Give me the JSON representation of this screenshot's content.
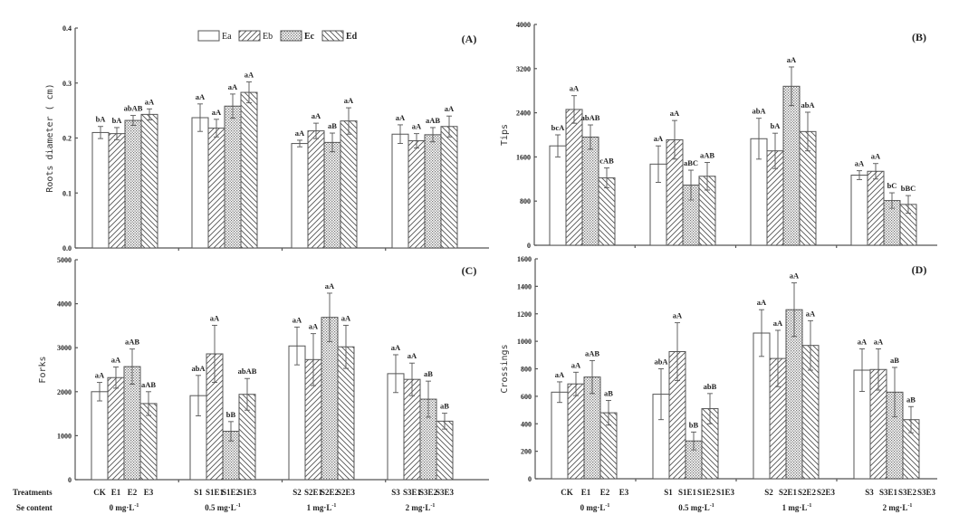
{
  "legend": [
    {
      "name": "Ea",
      "pattern": "empty"
    },
    {
      "name": "Eb",
      "pattern": "diag-right"
    },
    {
      "name": "Ec",
      "pattern": "dots"
    },
    {
      "name": "Ed",
      "pattern": "diag-left"
    }
  ],
  "x_axis": {
    "treatments_label": "Treatments",
    "se_content_label": "Se content",
    "groups": [
      {
        "se": "0 mg·L",
        "treatments": [
          "CK",
          "E1",
          "E2",
          "E3"
        ]
      },
      {
        "se": "0.5 mg·L",
        "treatments": [
          "S1",
          "S1E1",
          "S1E2",
          "S1E3"
        ]
      },
      {
        "se": "1 mg·L",
        "treatments": [
          "S2",
          "S2E1",
          "S2E2",
          "S2E3"
        ]
      },
      {
        "se": "2 mg·L",
        "treatments": [
          "S3",
          "S3E1",
          "S3E2",
          "S3E3"
        ]
      }
    ],
    "unit_superscript": "-1"
  },
  "chart_data": [
    {
      "id": "A",
      "panel_label": "(A)",
      "type": "bar",
      "ylabel": "Roots diameter ( cm)",
      "ylim": [
        0,
        0.4
      ],
      "yticks": [
        "0.0",
        "0.1",
        "0.2",
        "0.3",
        "0.4"
      ],
      "categories": [
        "0 mg·L-1",
        "0.5 mg·L-1",
        "1 mg·L-1",
        "2 mg·L-1"
      ],
      "series": [
        {
          "name": "Ea",
          "values": [
            0.21,
            0.237,
            0.19,
            0.207
          ],
          "errors": [
            0.011,
            0.025,
            0.006,
            0.017
          ],
          "labels": [
            "bA",
            "aA",
            "aA",
            "aA"
          ]
        },
        {
          "name": "Eb",
          "values": [
            0.208,
            0.218,
            0.213,
            0.195
          ],
          "errors": [
            0.011,
            0.016,
            0.014,
            0.013
          ],
          "labels": [
            "bA",
            "aA",
            "aA",
            "aA"
          ]
        },
        {
          "name": "Ec",
          "values": [
            0.232,
            0.258,
            0.192,
            0.206
          ],
          "errors": [
            0.009,
            0.022,
            0.017,
            0.013
          ],
          "labels": [
            "abAB",
            "aA",
            "aB",
            "aAB"
          ]
        },
        {
          "name": "Ed",
          "values": [
            0.243,
            0.283,
            0.231,
            0.221
          ],
          "errors": [
            0.01,
            0.019,
            0.024,
            0.019
          ],
          "labels": [
            "aA",
            "aA",
            "aA",
            "aA"
          ]
        }
      ]
    },
    {
      "id": "B",
      "panel_label": "(B)",
      "type": "bar",
      "ylabel": "Tips",
      "ylim": [
        0,
        4000
      ],
      "yticks": [
        "0",
        "800",
        "1600",
        "2400",
        "3200",
        "4000"
      ],
      "categories": [
        "0 mg·L-1",
        "0.5 mg·L-1",
        "1 mg·L-1",
        "2 mg·L-1"
      ],
      "series": [
        {
          "name": "Ea",
          "values": [
            1800,
            1470,
            1930,
            1270
          ],
          "errors": [
            200,
            330,
            370,
            80
          ],
          "labels": [
            "bcA",
            "aA",
            "abA",
            "aA"
          ]
        },
        {
          "name": "Eb",
          "values": [
            2460,
            1910,
            1710,
            1340
          ],
          "errors": [
            250,
            350,
            320,
            140
          ],
          "labels": [
            "aA",
            "aA",
            "bA",
            "aA"
          ]
        },
        {
          "name": "Ec",
          "values": [
            1960,
            1090,
            2880,
            810
          ],
          "errors": [
            220,
            270,
            350,
            140
          ],
          "labels": [
            "abAB",
            "aBC",
            "aA",
            "bC"
          ]
        },
        {
          "name": "Ed",
          "values": [
            1220,
            1250,
            2060,
            740
          ],
          "errors": [
            180,
            250,
            350,
            160
          ],
          "labels": [
            "cAB",
            "aAB",
            "abA",
            "bBC"
          ]
        }
      ]
    },
    {
      "id": "C",
      "panel_label": "(C)",
      "type": "bar",
      "ylabel": "Forks",
      "ylim": [
        0,
        5000
      ],
      "yticks": [
        "0",
        "1000",
        "2000",
        "3000",
        "4000",
        "5000"
      ],
      "categories": [
        "0 mg·L-1",
        "0.5 mg·L-1",
        "1 mg·L-1",
        "2 mg·L-1"
      ],
      "series": [
        {
          "name": "Ea",
          "values": [
            2000,
            1910,
            3040,
            2410
          ],
          "errors": [
            210,
            460,
            430,
            430
          ],
          "labels": [
            "aA",
            "abA",
            "aA",
            "aA"
          ]
        },
        {
          "name": "Eb",
          "values": [
            2320,
            2860,
            2730,
            2280
          ],
          "errors": [
            240,
            650,
            590,
            370
          ],
          "labels": [
            "aA",
            "aA",
            "aA",
            "aA"
          ]
        },
        {
          "name": "Ec",
          "values": [
            2570,
            1100,
            3690,
            1830
          ],
          "errors": [
            400,
            220,
            550,
            410
          ],
          "labels": [
            "aAB",
            "bB",
            "aA",
            "aB"
          ]
        },
        {
          "name": "Ed",
          "values": [
            1730,
            1940,
            3020,
            1330
          ],
          "errors": [
            270,
            360,
            490,
            180
          ],
          "labels": [
            "aAB",
            "abAB",
            "aA",
            "aB"
          ]
        }
      ]
    },
    {
      "id": "D",
      "panel_label": "(D)",
      "type": "bar",
      "ylabel": "Crossings",
      "ylim": [
        0,
        1600
      ],
      "yticks": [
        "0",
        "200",
        "400",
        "600",
        "800",
        "1000",
        "1200",
        "1400",
        "1600"
      ],
      "categories": [
        "0 mg·L-1",
        "0.5 mg·L-1",
        "1 mg·L-1",
        "2 mg·L-1"
      ],
      "series": [
        {
          "name": "Ea",
          "values": [
            630,
            615,
            1060,
            790
          ],
          "errors": [
            75,
            185,
            170,
            155
          ],
          "labels": [
            "aA",
            "abA",
            "aA",
            "aA"
          ]
        },
        {
          "name": "Eb",
          "values": [
            690,
            925,
            875,
            795
          ],
          "errors": [
            85,
            210,
            205,
            150
          ],
          "labels": [
            "aA",
            "aA",
            "aA",
            "aA"
          ]
        },
        {
          "name": "Ec",
          "values": [
            740,
            275,
            1230,
            630
          ],
          "errors": [
            120,
            65,
            195,
            180
          ],
          "labels": [
            "aAB",
            "bB",
            "aA",
            "aB"
          ]
        },
        {
          "name": "Ed",
          "values": [
            480,
            510,
            970,
            430
          ],
          "errors": [
            90,
            110,
            180,
            95
          ],
          "labels": [
            "aB",
            "abB",
            "aA",
            "aB"
          ]
        }
      ]
    }
  ]
}
